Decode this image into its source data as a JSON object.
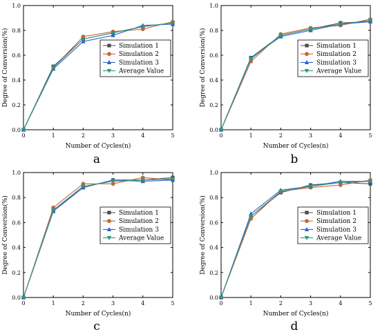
{
  "chart_data": [
    {
      "type": "line",
      "panel_label": "a",
      "xlabel": "Number of Cycles(n)",
      "ylabel": "Degree of Conversion(%)",
      "xlim": [
        0,
        5
      ],
      "ylim": [
        0.0,
        1.0
      ],
      "xticks": [
        "0",
        "1",
        "2",
        "3",
        "4",
        "5"
      ],
      "yticks": [
        "0.0",
        "0.2",
        "0.4",
        "0.6",
        "0.8",
        "1.0"
      ],
      "legend_position": "right",
      "x": [
        0,
        1,
        2,
        3,
        4,
        5
      ],
      "series": [
        {
          "name": "Simulation 1",
          "color": "#4d4d4d",
          "marker": "square",
          "values": [
            0.0,
            0.51,
            0.73,
            0.78,
            0.83,
            0.86
          ]
        },
        {
          "name": "Simulation 2",
          "color": "#c8663c",
          "marker": "circle",
          "values": [
            0.0,
            0.5,
            0.75,
            0.79,
            0.81,
            0.87
          ]
        },
        {
          "name": "Simulation 3",
          "color": "#2f5fd0",
          "marker": "triangle-up",
          "values": [
            0.0,
            0.49,
            0.71,
            0.76,
            0.84,
            0.85
          ]
        },
        {
          "name": "Average Value",
          "color": "#2e9a7a",
          "marker": "triangle-down",
          "values": [
            0.0,
            0.5,
            0.73,
            0.78,
            0.83,
            0.86
          ]
        }
      ]
    },
    {
      "type": "line",
      "panel_label": "b",
      "xlabel": "Number of Cycles(n)",
      "ylabel": "Degree of Conversion(%)",
      "xlim": [
        0,
        5
      ],
      "ylim": [
        0.0,
        1.0
      ],
      "xticks": [
        "0",
        "1",
        "2",
        "3",
        "4",
        "5"
      ],
      "yticks": [
        "0.0",
        "0.2",
        "0.4",
        "0.6",
        "0.8",
        "1.0"
      ],
      "legend_position": "right",
      "x": [
        0,
        1,
        2,
        3,
        4,
        5
      ],
      "series": [
        {
          "name": "Simulation 1",
          "color": "#4d4d4d",
          "marker": "square",
          "values": [
            0.0,
            0.58,
            0.76,
            0.81,
            0.86,
            0.87
          ]
        },
        {
          "name": "Simulation 2",
          "color": "#c8663c",
          "marker": "circle",
          "values": [
            0.0,
            0.55,
            0.77,
            0.82,
            0.84,
            0.89
          ]
        },
        {
          "name": "Simulation 3",
          "color": "#2f5fd0",
          "marker": "triangle-up",
          "values": [
            0.0,
            0.58,
            0.75,
            0.8,
            0.85,
            0.87
          ]
        },
        {
          "name": "Average Value",
          "color": "#2e9a7a",
          "marker": "triangle-down",
          "values": [
            0.0,
            0.57,
            0.76,
            0.81,
            0.85,
            0.88
          ]
        }
      ]
    },
    {
      "type": "line",
      "panel_label": "c",
      "xlabel": "Number of Cycles(n)",
      "ylabel": "Degree of Conversion(%)",
      "xlim": [
        0,
        5
      ],
      "ylim": [
        0.0,
        1.0
      ],
      "xticks": [
        "0",
        "1",
        "2",
        "3",
        "4",
        "5"
      ],
      "yticks": [
        "0.0",
        "0.2",
        "0.4",
        "0.6",
        "0.8",
        "1.0"
      ],
      "legend_position": "right",
      "x": [
        0,
        1,
        2,
        3,
        4,
        5
      ],
      "series": [
        {
          "name": "Simulation 1",
          "color": "#4d4d4d",
          "marker": "square",
          "values": [
            0.0,
            0.7,
            0.88,
            0.94,
            0.94,
            0.96
          ]
        },
        {
          "name": "Simulation 2",
          "color": "#c8663c",
          "marker": "circle",
          "values": [
            0.0,
            0.72,
            0.91,
            0.91,
            0.96,
            0.94
          ]
        },
        {
          "name": "Simulation 3",
          "color": "#2f5fd0",
          "marker": "triangle-up",
          "values": [
            0.0,
            0.69,
            0.88,
            0.94,
            0.93,
            0.94
          ]
        },
        {
          "name": "Average Value",
          "color": "#2e9a7a",
          "marker": "triangle-down",
          "values": [
            0.0,
            0.7,
            0.89,
            0.93,
            0.94,
            0.95
          ]
        }
      ]
    },
    {
      "type": "line",
      "panel_label": "d",
      "xlabel": "Number of Cycles(n)",
      "ylabel": "Degree of Conversion(%)",
      "xlim": [
        0,
        5
      ],
      "ylim": [
        0.0,
        1.0
      ],
      "xticks": [
        "0",
        "1",
        "2",
        "3",
        "4",
        "5"
      ],
      "yticks": [
        "0.0",
        "0.2",
        "0.4",
        "0.6",
        "0.8",
        "1.0"
      ],
      "legend_position": "right",
      "x": [
        0,
        1,
        2,
        3,
        4,
        5
      ],
      "series": [
        {
          "name": "Simulation 1",
          "color": "#4d4d4d",
          "marker": "square",
          "values": [
            0.0,
            0.65,
            0.84,
            0.9,
            0.92,
            0.91
          ]
        },
        {
          "name": "Simulation 2",
          "color": "#c8663c",
          "marker": "circle",
          "values": [
            0.0,
            0.63,
            0.85,
            0.88,
            0.9,
            0.94
          ]
        },
        {
          "name": "Simulation 3",
          "color": "#2f5fd0",
          "marker": "triangle-up",
          "values": [
            0.0,
            0.67,
            0.86,
            0.89,
            0.93,
            0.93
          ]
        },
        {
          "name": "Average Value",
          "color": "#2e9a7a",
          "marker": "triangle-down",
          "values": [
            0.0,
            0.65,
            0.85,
            0.89,
            0.92,
            0.93
          ]
        }
      ]
    }
  ]
}
